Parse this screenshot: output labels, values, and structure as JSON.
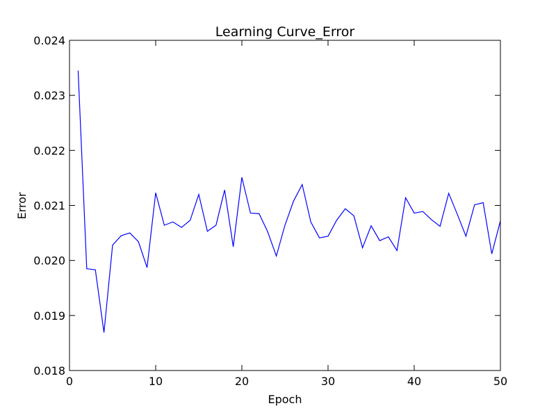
{
  "chart_data": {
    "type": "line",
    "title": "Learning Curve_Error",
    "xlabel": "Epoch",
    "ylabel": "Error",
    "xlim": [
      0,
      50
    ],
    "ylim": [
      0.018,
      0.024
    ],
    "grid": false,
    "x_ticks": [
      "0",
      "10",
      "20",
      "30",
      "40",
      "50"
    ],
    "y_ticks": [
      "0.018",
      "0.019",
      "0.020",
      "0.021",
      "0.022",
      "0.023",
      "0.024"
    ],
    "line_color": "#0000ff",
    "series": [
      {
        "x": [
          1,
          2,
          3,
          4,
          5,
          6,
          7,
          8,
          9,
          10,
          11,
          12,
          13,
          14,
          15,
          16,
          17,
          18,
          19,
          20,
          21,
          22,
          23,
          24,
          25,
          26,
          27,
          28,
          29,
          30,
          31,
          32,
          33,
          34,
          35,
          36,
          37,
          38,
          39,
          40,
          41,
          42,
          43,
          44,
          45,
          46,
          47,
          48,
          49,
          50
        ],
        "values": [
          0.02345,
          0.01985,
          0.01983,
          0.01869,
          0.02028,
          0.02045,
          0.0205,
          0.02034,
          0.01987,
          0.02123,
          0.02064,
          0.0207,
          0.0206,
          0.02073,
          0.0212,
          0.02053,
          0.02064,
          0.02128,
          0.02025,
          0.02151,
          0.02086,
          0.02085,
          0.02052,
          0.02008,
          0.02064,
          0.02108,
          0.02138,
          0.0207,
          0.02041,
          0.02044,
          0.02073,
          0.02094,
          0.02081,
          0.02023,
          0.02063,
          0.02036,
          0.02043,
          0.02018,
          0.02114,
          0.02086,
          0.02089,
          0.02074,
          0.02062,
          0.02122,
          0.02084,
          0.02044,
          0.02101,
          0.02105,
          0.02012,
          0.02072
        ]
      }
    ]
  }
}
